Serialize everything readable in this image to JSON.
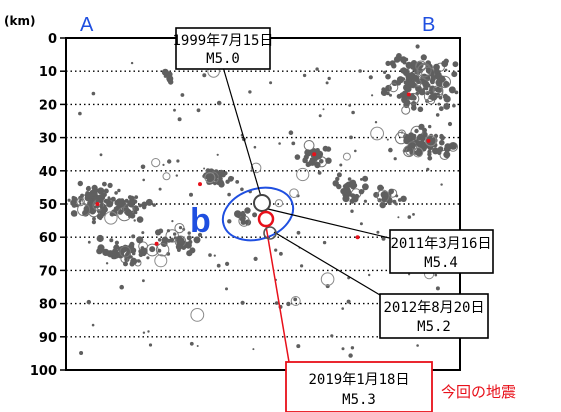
{
  "chart_data": {
    "type": "scatter",
    "ylabel": "(km)",
    "ylim": [
      0,
      100
    ],
    "yticks": [
      "0",
      "10",
      "20",
      "30",
      "40",
      "50",
      "60",
      "70",
      "80",
      "90",
      "100"
    ],
    "side_labels": {
      "left": "A",
      "right": "B"
    },
    "region_label": "b",
    "grid": "horizontal dotted at every 10 km",
    "colors": {
      "background_events": "#5f5f5f",
      "centroids": "#e8101a",
      "region": "#1f4fe0",
      "current_event": "#e8101a"
    },
    "clusters": [
      {
        "x": 0.07,
        "depth": 50,
        "spread": [
          0.05,
          4.0
        ],
        "count": 90
      },
      {
        "x": 0.17,
        "depth": 51,
        "spread": [
          0.04,
          3.5
        ],
        "count": 40
      },
      {
        "x": 0.15,
        "depth": 65,
        "spread": [
          0.06,
          3.0
        ],
        "count": 55
      },
      {
        "x": 0.29,
        "depth": 61,
        "spread": [
          0.04,
          3.0
        ],
        "count": 35
      },
      {
        "x": 0.39,
        "depth": 42,
        "spread": [
          0.035,
          2.2
        ],
        "count": 30
      },
      {
        "x": 0.45,
        "depth": 54,
        "spread": [
          0.02,
          1.8
        ],
        "count": 14
      },
      {
        "x": 0.63,
        "depth": 36,
        "spread": [
          0.03,
          2.8
        ],
        "count": 32
      },
      {
        "x": 0.72,
        "depth": 45,
        "spread": [
          0.04,
          3.5
        ],
        "count": 25
      },
      {
        "x": 0.82,
        "depth": 48,
        "spread": [
          0.03,
          2.2
        ],
        "count": 22
      },
      {
        "x": 0.9,
        "depth": 14,
        "spread": [
          0.08,
          7.0
        ],
        "count": 150
      },
      {
        "x": 0.91,
        "depth": 32,
        "spread": [
          0.06,
          4.0
        ],
        "count": 80
      },
      {
        "x": 0.26,
        "depth": 12,
        "spread": [
          0.008,
          1.5
        ],
        "count": 8
      }
    ],
    "centroids": [
      {
        "x": 0.08,
        "depth": 50
      },
      {
        "x": 0.23,
        "depth": 62
      },
      {
        "x": 0.34,
        "depth": 44
      },
      {
        "x": 0.63,
        "depth": 35
      },
      {
        "x": 0.74,
        "depth": 60
      },
      {
        "x": 0.87,
        "depth": 17
      },
      {
        "x": 0.92,
        "depth": 31
      }
    ],
    "events": [
      {
        "id": "e1999",
        "date": "1999年7月15日",
        "mag": "M5.0",
        "x": 0.505,
        "depth": 50
      },
      {
        "id": "e2011",
        "date": "2011年3月16日",
        "mag": "M5.4",
        "x": 0.515,
        "depth": 58
      },
      {
        "id": "e2012",
        "date": "2012年8月20日",
        "mag": "M5.2",
        "x": 0.53,
        "depth": 60
      },
      {
        "id": "e2019",
        "date": "2019年1月18日",
        "mag": "M5.3",
        "x": 0.5,
        "depth": 54,
        "note": "今回の地震"
      }
    ]
  }
}
